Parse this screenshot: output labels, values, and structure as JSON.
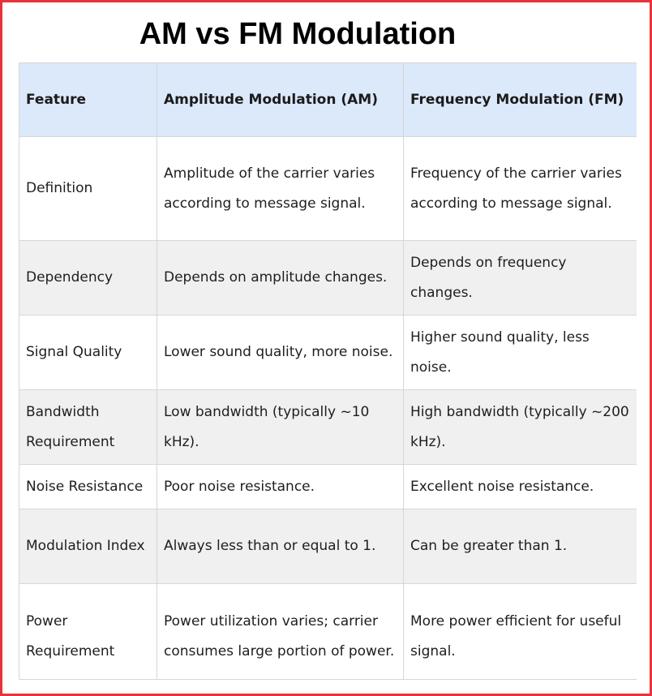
{
  "title": "AM vs FM Modulation",
  "colors": {
    "border": "#e8323a",
    "header_bg": "#dce9fb",
    "stripe_bg": "#f0f0f0"
  },
  "table": {
    "headers": [
      "Feature",
      "Amplitude Modulation (AM)",
      "Frequency Modulation (FM)"
    ],
    "rows": [
      [
        "Definition",
        "Amplitude of the carrier varies according to message signal.",
        "Frequency of the carrier varies according to message signal."
      ],
      [
        "Dependency",
        "Depends on amplitude changes.",
        "Depends on frequency changes."
      ],
      [
        "Signal Quality",
        "Lower sound quality, more noise.",
        "Higher sound quality, less noise."
      ],
      [
        "Bandwidth Requirement",
        "Low bandwidth (typically ~10 kHz).",
        "High bandwidth (typically ~200 kHz)."
      ],
      [
        "Noise Resistance",
        "Poor noise resistance.",
        "Excellent noise resistance."
      ],
      [
        "Modulation Index",
        "Always less than or equal to 1.",
        "Can be greater than 1."
      ],
      [
        "Power Requirement",
        "Power utilization varies; carrier consumes large portion of power.",
        "More power efficient for useful signal."
      ]
    ]
  }
}
